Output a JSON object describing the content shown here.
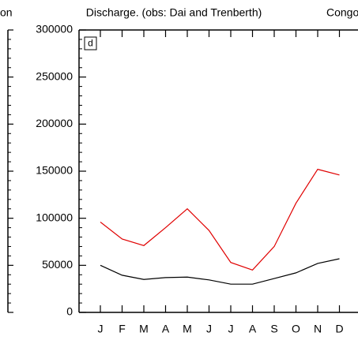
{
  "chart_data": {
    "type": "line",
    "title": "Discharge. (obs: Dai and Trenberth)",
    "left_fragment": "on",
    "right_title": "Congo",
    "panel_label": "d",
    "categories": [
      "J",
      "F",
      "M",
      "A",
      "M",
      "J",
      "J",
      "A",
      "S",
      "O",
      "N",
      "D"
    ],
    "series": [
      {
        "color": "#e00000",
        "values": [
          96000,
          78000,
          71000,
          90000,
          110000,
          87000,
          53000,
          45000,
          70000,
          116000,
          152000,
          146000
        ]
      },
      {
        "color": "#000000",
        "values": [
          50000,
          39500,
          35000,
          37000,
          37500,
          34500,
          30000,
          30000,
          36000,
          42000,
          52000,
          57000
        ]
      }
    ],
    "ylim": [
      0,
      300000
    ],
    "yticks": [
      0,
      50000,
      100000,
      150000,
      200000,
      250000,
      300000
    ]
  }
}
